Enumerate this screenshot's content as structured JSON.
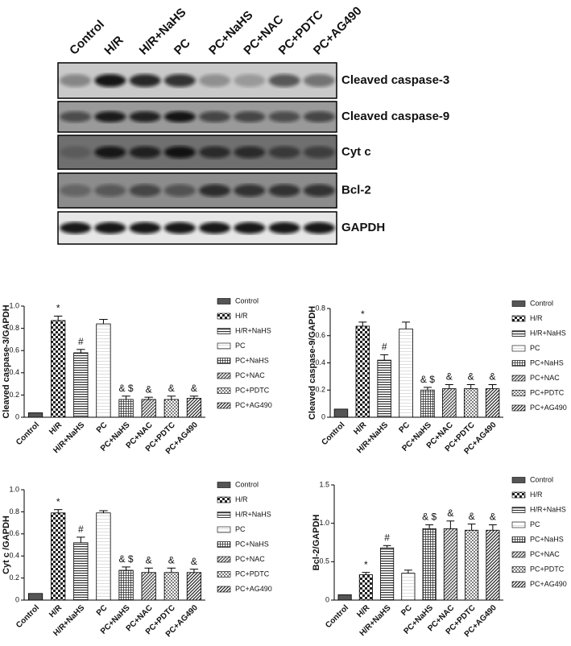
{
  "blot": {
    "lanes": [
      "Control",
      "H/R",
      "H/R+NaHS",
      "PC",
      "PC+NaHS",
      "PC+NAC",
      "PC+PDTC",
      "PC+AG490"
    ],
    "rows": [
      "Cleaved caspase-3",
      "Cleaved caspase-9",
      "Cyt c",
      "Bcl-2",
      "GAPDH"
    ]
  },
  "chart_data": [
    {
      "type": "bar",
      "ylabel": "Cleaved caspase-3/GAPDH",
      "categories": [
        "Control",
        "H/R",
        "H/R+NaHS",
        "PC",
        "PC+NaHS",
        "PC+NAC",
        "PC+PDTC",
        "PC+AG490"
      ],
      "values": [
        0.04,
        0.87,
        0.58,
        0.84,
        0.16,
        0.16,
        0.16,
        0.17
      ],
      "errors": [
        0,
        0.04,
        0.03,
        0.04,
        0.03,
        0.02,
        0.03,
        0.02
      ],
      "annotations": [
        null,
        "*",
        "#",
        null,
        "& $",
        "&",
        "&",
        "&"
      ],
      "ylim": [
        0,
        1
      ],
      "yticks": [
        0,
        0.2,
        0.4,
        0.6,
        0.8,
        {
          "value": 1,
          "label": "1.0"
        }
      ]
    },
    {
      "type": "bar",
      "ylabel": "Cleaved caspase-9/GAPDH",
      "categories": [
        "Control",
        "H/R",
        "H/R+NaHS",
        "PC",
        "PC+NaHS",
        "PC+NAC",
        "PC+PDTC",
        "PC+AG490"
      ],
      "values": [
        0.06,
        0.67,
        0.42,
        0.65,
        0.2,
        0.21,
        0.21,
        0.21
      ],
      "errors": [
        0,
        0.03,
        0.04,
        0.05,
        0.02,
        0.03,
        0.03,
        0.03
      ],
      "annotations": [
        null,
        "*",
        "#",
        null,
        "& $",
        "&",
        "&",
        "&"
      ],
      "ylim": [
        0,
        0.8
      ],
      "yticks": [
        0,
        0.2,
        0.4,
        0.6,
        0.8
      ]
    },
    {
      "type": "bar",
      "ylabel": "Cyt c /GAPDH",
      "categories": [
        "Control",
        "H/R",
        "H/R+NaHS",
        "PC",
        "PC+NaHS",
        "PC+NAC",
        "PC+PDTC",
        "PC+AG490"
      ],
      "values": [
        0.06,
        0.79,
        0.52,
        0.79,
        0.27,
        0.25,
        0.25,
        0.25
      ],
      "errors": [
        0,
        0.03,
        0.05,
        0.02,
        0.03,
        0.04,
        0.04,
        0.03
      ],
      "annotations": [
        null,
        "*",
        "#",
        null,
        "& $",
        "&",
        "&",
        "&"
      ],
      "ylim": [
        0,
        1
      ],
      "yticks": [
        0,
        0.2,
        0.4,
        0.6,
        0.8,
        {
          "value": 1,
          "label": "1.0"
        }
      ]
    },
    {
      "type": "bar",
      "ylabel": "Bcl-2/GAPDH",
      "categories": [
        "Control",
        "H/R",
        "H/R+NaHS",
        "PC",
        "PC+NaHS",
        "PC+NAC",
        "PC+PDTC",
        "PC+AG490"
      ],
      "values": [
        0.07,
        0.33,
        0.68,
        0.35,
        0.93,
        0.93,
        0.91,
        0.91
      ],
      "errors": [
        0,
        0.03,
        0.03,
        0.04,
        0.05,
        0.1,
        0.08,
        0.07
      ],
      "annotations": [
        null,
        "*",
        "#",
        null,
        "& $",
        "&",
        "&",
        "&"
      ],
      "ylim": [
        0,
        1.5
      ],
      "yticks": [
        0,
        0.5,
        {
          "value": 1,
          "label": "1.0"
        },
        {
          "value": 1.5,
          "label": "1.5"
        }
      ]
    }
  ]
}
